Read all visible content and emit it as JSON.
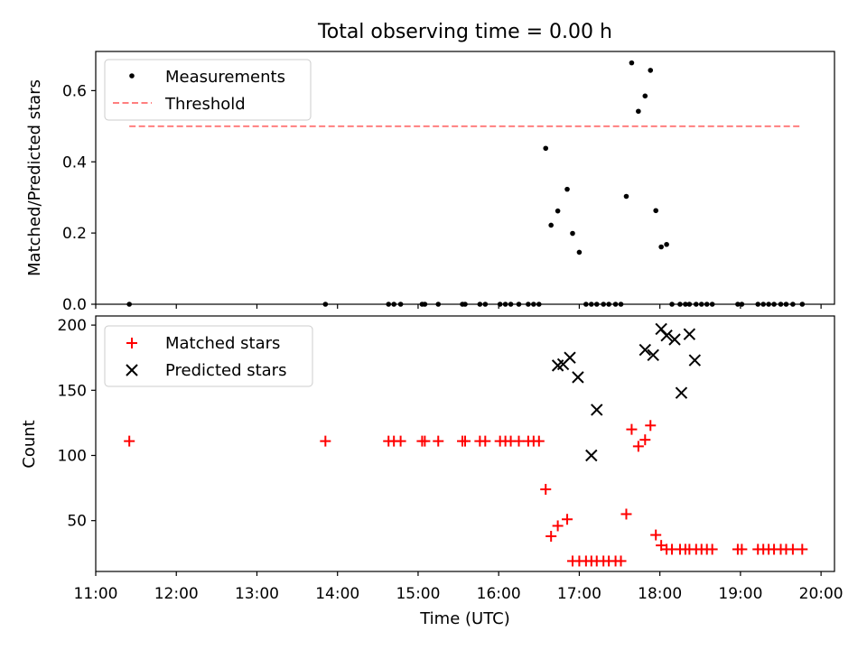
{
  "figure": {
    "title": "Total observing time = 0.00 h"
  },
  "chart_data": [
    {
      "type": "scatter",
      "ylabel": "Matched/Predicted stars",
      "xlabel": "",
      "ylim": [
        0,
        0.71
      ],
      "yticks": [
        0.0,
        0.2,
        0.4,
        0.6
      ],
      "ytick_labels": [
        "0.0",
        "0.2",
        "0.4",
        "0.6"
      ],
      "grid": false,
      "legend": {
        "placement": "top-left",
        "entries": [
          "Measurements",
          "Threshold"
        ]
      },
      "series": [
        {
          "name": "Measurements",
          "marker": "dot",
          "color": "#000000",
          "x": [
            "11:25",
            "13:51",
            "14:38",
            "14:42",
            "14:47",
            "15:03",
            "15:05",
            "15:15",
            "15:33",
            "15:35",
            "15:46",
            "15:50",
            "16:01",
            "16:05",
            "16:09",
            "16:15",
            "16:22",
            "16:26",
            "16:30",
            "16:35",
            "16:39",
            "16:44",
            "16:51",
            "16:55",
            "17:00",
            "17:05",
            "17:09",
            "17:13",
            "17:18",
            "17:22",
            "17:27",
            "17:31",
            "17:35",
            "17:39",
            "17:44",
            "17:49",
            "17:53",
            "17:57",
            "18:01",
            "18:05",
            "18:09",
            "18:15",
            "18:19",
            "18:22",
            "18:27",
            "18:31",
            "18:35",
            "18:39",
            "18:58",
            "19:01",
            "19:13",
            "19:17",
            "19:21",
            "19:25",
            "19:30",
            "19:34",
            "19:39",
            "19:46"
          ],
          "y": [
            0,
            0,
            0,
            0,
            0,
            0,
            0,
            0,
            0,
            0,
            0,
            0,
            0,
            0,
            0,
            0,
            0,
            0,
            0,
            0.438,
            0.222,
            0.262,
            0.323,
            0.199,
            0.146,
            0,
            0,
            0,
            0,
            0,
            0,
            0,
            0.303,
            0.678,
            0.542,
            0.585,
            0.657,
            0.263,
            0.161,
            0.168,
            0,
            0,
            0,
            0,
            0,
            0,
            0,
            0,
            0,
            0,
            0,
            0,
            0,
            0,
            0,
            0,
            0,
            0
          ]
        },
        {
          "name": "Threshold",
          "style": "dashed",
          "color": "#ff7f7f",
          "x": [
            "11:25",
            "19:46"
          ],
          "y": [
            0.5,
            0.5
          ]
        }
      ]
    },
    {
      "type": "scatter",
      "xlabel": "Time (UTC)",
      "ylabel": "Count",
      "xlim": [
        "11:00",
        "20:10"
      ],
      "xticks": [
        "11:00",
        "12:00",
        "13:00",
        "14:00",
        "15:00",
        "16:00",
        "17:00",
        "18:00",
        "19:00",
        "20:00"
      ],
      "ylim": [
        11,
        207
      ],
      "yticks": [
        50,
        100,
        150,
        200
      ],
      "grid": false,
      "legend": {
        "placement": "top-left",
        "entries": [
          "Matched stars",
          "Predicted stars"
        ]
      },
      "series": [
        {
          "name": "Matched stars",
          "marker": "plus",
          "color": "#ff0000",
          "x": [
            "11:25",
            "13:51",
            "14:38",
            "14:42",
            "14:47",
            "15:03",
            "15:05",
            "15:15",
            "15:33",
            "15:35",
            "15:46",
            "15:50",
            "16:01",
            "16:05",
            "16:09",
            "16:15",
            "16:22",
            "16:26",
            "16:30",
            "16:35",
            "16:39",
            "16:44",
            "16:51",
            "16:55",
            "17:00",
            "17:05",
            "17:09",
            "17:13",
            "17:18",
            "17:22",
            "17:27",
            "17:31",
            "17:35",
            "17:39",
            "17:44",
            "17:49",
            "17:53",
            "17:57",
            "18:01",
            "18:05",
            "18:09",
            "18:15",
            "18:19",
            "18:22",
            "18:27",
            "18:31",
            "18:35",
            "18:39",
            "18:58",
            "19:01",
            "19:13",
            "19:17",
            "19:21",
            "19:25",
            "19:30",
            "19:34",
            "19:39",
            "19:46"
          ],
          "y": [
            111,
            111,
            111,
            111,
            111,
            111,
            111,
            111,
            111,
            111,
            111,
            111,
            111,
            111,
            111,
            111,
            111,
            111,
            111,
            74,
            38,
            46,
            51,
            19,
            19,
            19,
            19,
            19,
            19,
            19,
            19,
            19,
            55,
            120,
            107,
            112,
            123,
            39,
            31,
            28,
            28,
            28,
            28,
            28,
            28,
            28,
            28,
            28,
            28,
            28,
            28,
            28,
            28,
            28,
            28,
            28,
            28,
            28
          ]
        },
        {
          "name": "Predicted stars",
          "marker": "x",
          "color": "#000000",
          "x": [
            "16:44",
            "16:48",
            "16:53",
            "16:59",
            "17:09",
            "17:13",
            "17:49",
            "17:55",
            "18:01",
            "18:05",
            "18:11",
            "18:16",
            "18:22",
            "18:26"
          ],
          "y": [
            169,
            170,
            175,
            160,
            100,
            135,
            181,
            177,
            197,
            192,
            189,
            148,
            193,
            173
          ]
        }
      ]
    }
  ]
}
